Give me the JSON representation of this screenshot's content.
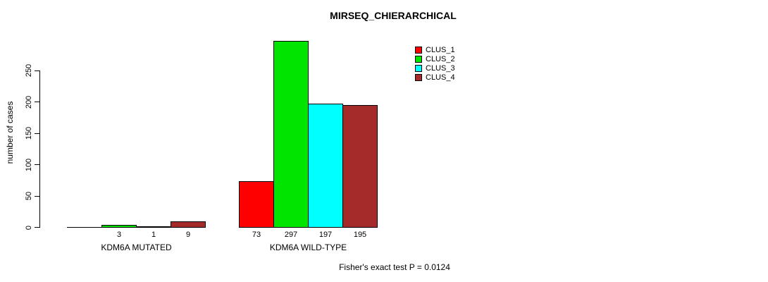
{
  "chart_data": {
    "type": "bar",
    "title": "MIRSEQ_CHIERARCHICAL",
    "ylabel": "number of cases",
    "xlabel": "",
    "ylim": [
      0,
      250
    ],
    "yticks": [
      0,
      50,
      100,
      150,
      200,
      250
    ],
    "grid": false,
    "legend_position": "top-right",
    "categories": [
      "KDM6A MUTATED",
      "KDM6A WILD-TYPE"
    ],
    "series": [
      {
        "name": "CLUS_1",
        "color": "#FF0000",
        "values": [
          0,
          73
        ]
      },
      {
        "name": "CLUS_2",
        "color": "#00E400",
        "values": [
          3,
          297
        ]
      },
      {
        "name": "CLUS_3",
        "color": "#00FFFF",
        "values": [
          1,
          197
        ]
      },
      {
        "name": "CLUS_4",
        "color": "#A52A2A",
        "values": [
          9,
          195
        ]
      }
    ],
    "bar_value_labels": [
      [
        "",
        "3",
        "1",
        "9"
      ],
      [
        "73",
        "297",
        "197",
        "195"
      ]
    ],
    "annotation": "Fisher's exact test P = 0.0124",
    "axis_color": "#000000",
    "background_color": "#FFFFFF"
  }
}
